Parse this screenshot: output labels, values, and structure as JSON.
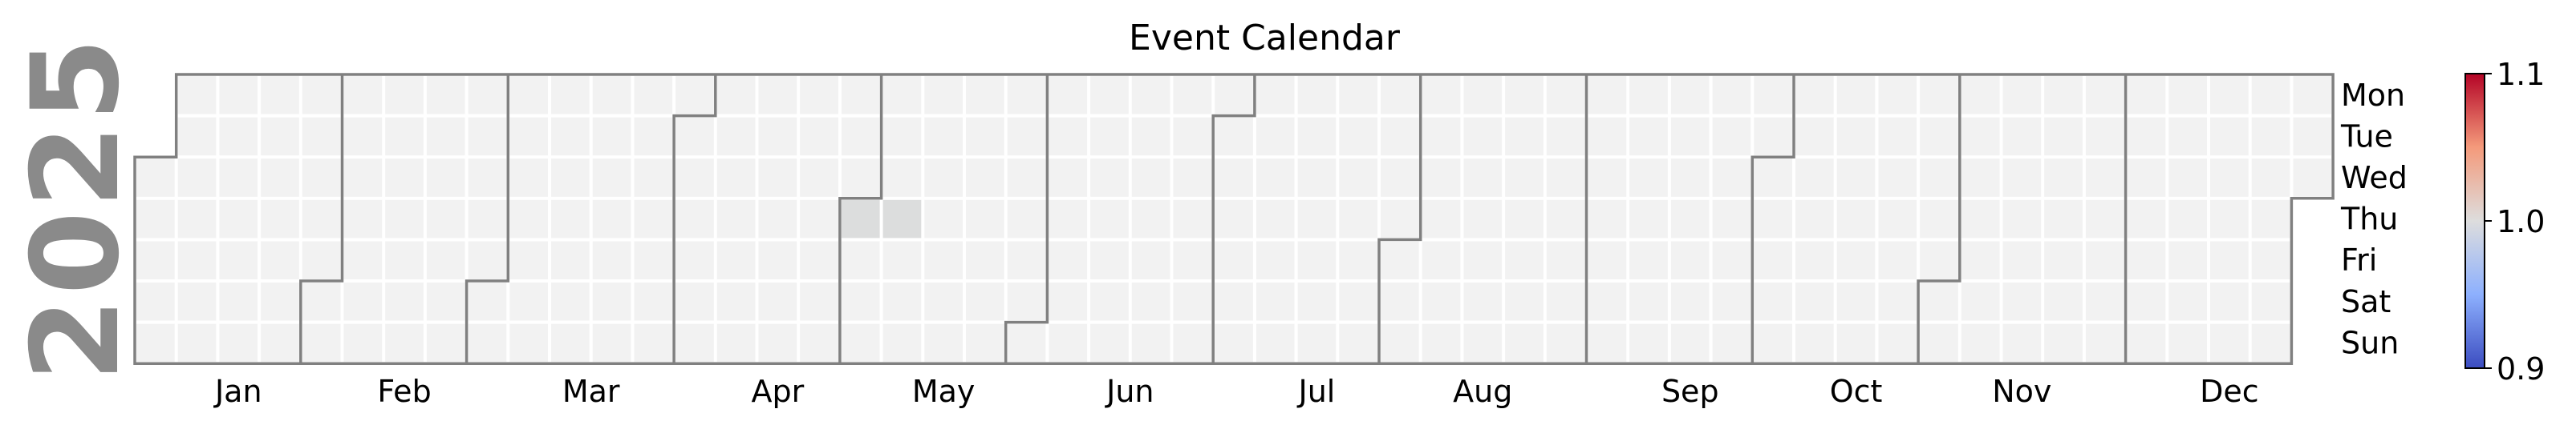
{
  "chart_data": {
    "type": "heatmap",
    "title": "Event Calendar",
    "year": "2025",
    "first_weekday_of_year": "Wed",
    "weekday_labels": [
      "Mon",
      "Tue",
      "Wed",
      "Thu",
      "Fri",
      "Sat",
      "Sun"
    ],
    "month_labels": [
      "Jan",
      "Feb",
      "Mar",
      "Apr",
      "May",
      "Jun",
      "Jul",
      "Aug",
      "Sep",
      "Oct",
      "Nov",
      "Dec"
    ],
    "events": [
      {
        "date": "2025-05-01",
        "value": 1.0
      },
      {
        "date": "2025-05-08",
        "value": 1.0
      }
    ],
    "colorbar": {
      "colormap": "coolwarm",
      "min": 0.9,
      "max": 1.1,
      "ticks": [
        "0.9",
        "1.0",
        "1.1"
      ]
    },
    "colors": {
      "empty_cell": "#f2f2f2",
      "event_cell": "#dcdddd",
      "month_border": "#808080",
      "year_label": "#8a8a8a"
    }
  }
}
